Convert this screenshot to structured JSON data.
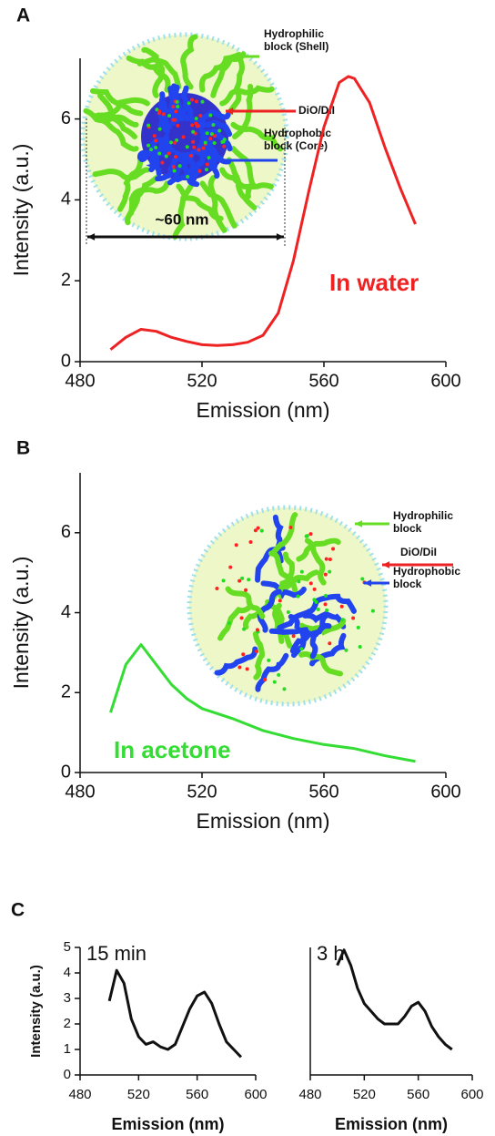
{
  "chart_data": [
    {
      "type": "line",
      "panel_label": "A",
      "x_label": "Emission (nm)",
      "y_label": "Intensity (a.u.)",
      "xlim": [
        480,
        600
      ],
      "xticks": [
        480,
        520,
        560,
        600
      ],
      "ylim": [
        0,
        7.5
      ],
      "yticks": [
        0,
        2,
        4,
        6
      ],
      "x": [
        490,
        495,
        500,
        505,
        510,
        515,
        520,
        525,
        530,
        535,
        540,
        545,
        550,
        555,
        560,
        565,
        568,
        570,
        575,
        580,
        585,
        590
      ],
      "values": [
        0.3,
        0.6,
        0.8,
        0.75,
        0.6,
        0.5,
        0.42,
        0.4,
        0.42,
        0.48,
        0.65,
        1.2,
        2.5,
        4.2,
        5.8,
        6.9,
        7.05,
        7.0,
        6.4,
        5.3,
        4.3,
        3.4
      ],
      "color": "#ee2222",
      "annotation": "In water",
      "inset_labels": [
        [
          "Hydrophilic",
          "block (Shell)"
        ],
        [
          "DiO/DiI"
        ],
        [
          "Hydrophobic",
          "block (Core)"
        ],
        [
          "~60 nm"
        ]
      ]
    },
    {
      "type": "line",
      "panel_label": "B",
      "x_label": "Emission (nm)",
      "y_label": "Intensity (a.u.)",
      "xlim": [
        480,
        600
      ],
      "xticks": [
        480,
        520,
        560,
        600
      ],
      "ylim": [
        0,
        7.5
      ],
      "yticks": [
        0,
        2,
        4,
        6
      ],
      "x": [
        490,
        495,
        500,
        505,
        510,
        515,
        520,
        530,
        540,
        550,
        560,
        570,
        580,
        590
      ],
      "values": [
        1.5,
        2.7,
        3.2,
        2.7,
        2.2,
        1.85,
        1.6,
        1.35,
        1.05,
        0.85,
        0.7,
        0.6,
        0.42,
        0.28
      ],
      "color": "#33dd33",
      "annotation": "In acetone",
      "inset_labels": [
        [
          "Hydrophilic",
          "block"
        ],
        [
          "DiO/DiI"
        ],
        [
          "Hydrophobic",
          "block"
        ]
      ]
    },
    {
      "type": "line",
      "panel_label": "C",
      "title": "15 min",
      "x_label": "Emission (nm)",
      "y_label": "Intensity (a.u.)",
      "xlim": [
        480,
        600
      ],
      "xticks": [
        480,
        520,
        560,
        600
      ],
      "ylim": [
        0,
        5
      ],
      "yticks": [
        0,
        1,
        2,
        3,
        4,
        5
      ],
      "x": [
        500,
        505,
        510,
        515,
        520,
        525,
        530,
        535,
        540,
        545,
        550,
        555,
        560,
        565,
        570,
        575,
        580,
        585,
        590
      ],
      "values": [
        2.9,
        4.1,
        3.6,
        2.2,
        1.5,
        1.2,
        1.3,
        1.1,
        1.0,
        1.2,
        1.9,
        2.6,
        3.1,
        3.25,
        2.8,
        2.0,
        1.3,
        1.0,
        0.7
      ],
      "color": "#111111"
    },
    {
      "type": "line",
      "title": "3 h",
      "x_label": "Emission (nm)",
      "xlim": [
        480,
        600
      ],
      "xticks": [
        480,
        520,
        560,
        600
      ],
      "ylim": [
        0,
        5
      ],
      "x": [
        500,
        505,
        510,
        515,
        520,
        530,
        535,
        540,
        545,
        550,
        555,
        560,
        565,
        570,
        575,
        580,
        585
      ],
      "values": [
        4.3,
        4.9,
        4.3,
        3.4,
        2.8,
        2.2,
        2.0,
        2.0,
        2.0,
        2.3,
        2.7,
        2.85,
        2.5,
        1.9,
        1.5,
        1.2,
        1.0
      ],
      "color": "#111111"
    }
  ]
}
